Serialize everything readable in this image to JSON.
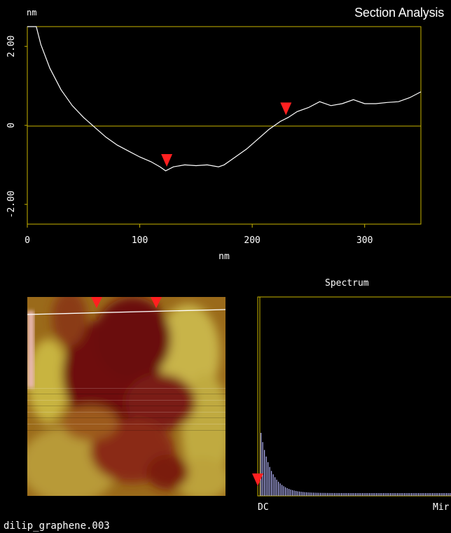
{
  "app": {
    "title": "Section Analysis"
  },
  "section_plot": {
    "y_unit": "nm",
    "x_label": "nm",
    "x_ticks": [
      "0",
      "100",
      "200",
      "300"
    ],
    "y_ticks": [
      "2.00",
      "0",
      "-2.00"
    ],
    "axis_color": "#c8b400",
    "trace_color": "#ffffff",
    "marker_color": "#ff2020"
  },
  "image_panel": {
    "marker_color": "#ff2020",
    "line_color": "#ffffff"
  },
  "spectrum": {
    "title": "Spectrum",
    "x_label_left": "DC",
    "x_label_right": "Mir",
    "bar_color": "#b8b8ff"
  },
  "footer": {
    "filename": "dilip_graphene.003"
  },
  "chart_data": {
    "type": "line",
    "title": "",
    "xlabel": "nm",
    "ylabel": "nm",
    "xlim": [
      0,
      350
    ],
    "ylim": [
      -2.5,
      2.5
    ],
    "grid": false,
    "series": [
      {
        "x": [
          0,
          8,
          12,
          20,
          30,
          40,
          50,
          60,
          70,
          80,
          90,
          100,
          110,
          118,
          123,
          130,
          140,
          150,
          160,
          170,
          175,
          185,
          195,
          205,
          215,
          225,
          232,
          240,
          250,
          260,
          270,
          280,
          290,
          300,
          310,
          320,
          330,
          340,
          350
        ],
        "y": [
          2.5,
          2.5,
          2.05,
          1.45,
          0.9,
          0.5,
          0.2,
          -0.05,
          -0.3,
          -0.5,
          -0.65,
          -0.8,
          -0.92,
          -1.05,
          -1.15,
          -1.05,
          -1.0,
          -1.02,
          -1.0,
          -1.05,
          -1.0,
          -0.8,
          -0.6,
          -0.35,
          -0.1,
          0.1,
          0.2,
          0.35,
          0.45,
          0.6,
          0.5,
          0.55,
          0.65,
          0.55,
          0.55,
          0.58,
          0.6,
          0.7,
          0.85
        ]
      }
    ],
    "markers_x": [
      124,
      230
    ]
  }
}
